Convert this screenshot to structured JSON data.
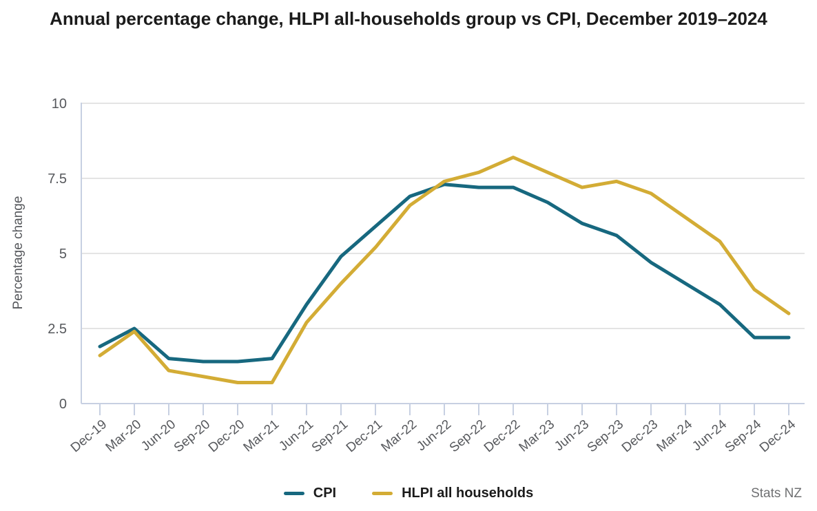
{
  "title": "Annual percentage change, HLPI all-households group vs CPI, December 2019–2024",
  "source": "Stats NZ",
  "chart_data": {
    "type": "line",
    "title": "Annual percentage change, HLPI all-households group vs CPI, December 2019–2024",
    "xlabel": "",
    "ylabel": "Percentage change",
    "ylim": [
      0,
      10
    ],
    "yticks": [
      0,
      2.5,
      5,
      7.5,
      10
    ],
    "ytick_labels": [
      "0",
      "2.5",
      "5",
      "7.5",
      "10"
    ],
    "grid": true,
    "legend_position": "bottom",
    "categories": [
      "Dec-19",
      "Mar-20",
      "Jun-20",
      "Sep-20",
      "Dec-20",
      "Mar-21",
      "Jun-21",
      "Sep-21",
      "Dec-21",
      "Mar-22",
      "Jun-22",
      "Sep-22",
      "Dec-22",
      "Mar-23",
      "Jun-23",
      "Sep-23",
      "Dec-23",
      "Mar-24",
      "Jun-24",
      "Sep-24",
      "Dec-24"
    ],
    "series": [
      {
        "name": "CPI",
        "color": "#17687f",
        "values": [
          1.9,
          2.5,
          1.5,
          1.4,
          1.4,
          1.5,
          3.3,
          4.9,
          5.9,
          6.9,
          7.3,
          7.2,
          7.2,
          6.7,
          6.0,
          5.6,
          4.7,
          4.0,
          3.3,
          2.2,
          2.2
        ]
      },
      {
        "name": "HLPI all households",
        "color": "#d3ac35",
        "values": [
          1.6,
          2.4,
          1.1,
          0.9,
          0.7,
          0.7,
          2.7,
          4.0,
          5.2,
          6.6,
          7.4,
          7.7,
          8.2,
          7.7,
          7.2,
          7.4,
          7.0,
          6.2,
          5.4,
          3.8,
          3.0
        ]
      }
    ],
    "axis_colors": {
      "axis_line": "#c7d0e2",
      "gridline": "#e4e4e4",
      "tick_label": "#56585c"
    }
  }
}
